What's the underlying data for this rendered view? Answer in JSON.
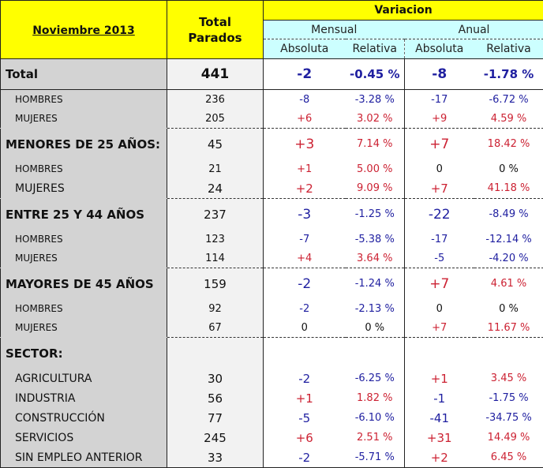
{
  "header": {
    "title": "Noviembre 2013",
    "total_parados": [
      "Total",
      "Parados"
    ],
    "variacion": "Variacion",
    "mensual": "Mensual",
    "anual": "Anual",
    "absoluta": "Absoluta",
    "relativa": "Relativa"
  },
  "colors": {
    "header_bg": "#ffff00",
    "subheader_bg": "#ccffff",
    "label_bg": "#d3d3d3",
    "negative": "#1f1fa0",
    "positive": "#cc2233"
  },
  "rows": [
    {
      "type": "total",
      "label": "Total",
      "total": "441",
      "m_abs": "-2",
      "m_rel": "-0.45 %",
      "a_abs": "-8",
      "a_rel": "-1.78 %"
    },
    {
      "type": "sub",
      "label": "HOMBRES",
      "total": "236",
      "m_abs": "-8",
      "m_rel": "-3.28 %",
      "a_abs": "-17",
      "a_rel": "-6.72 %"
    },
    {
      "type": "sub",
      "label": "MUJERES",
      "total": "205",
      "m_abs": "+6",
      "m_rel": "3.02 %",
      "a_abs": "+9",
      "a_rel": "4.59 %",
      "dash": true
    },
    {
      "type": "group",
      "label": "MENORES DE 25 AÑOS:",
      "total": "45",
      "m_abs": "+3",
      "m_rel": "7.14 %",
      "a_abs": "+7",
      "a_rel": "18.42 %"
    },
    {
      "type": "sub",
      "label": "HOMBRES",
      "total": "21",
      "m_abs": "+1",
      "m_rel": "5.00 %",
      "a_abs": "0",
      "a_rel": "0 %"
    },
    {
      "type": "item",
      "label": "MUJERES",
      "total": "24",
      "m_abs": "+2",
      "m_rel": "9.09 %",
      "a_abs": "+7",
      "a_rel": "41.18 %",
      "dash": true
    },
    {
      "type": "group",
      "label": "ENTRE 25 Y 44 AÑOS",
      "total": "237",
      "m_abs": "-3",
      "m_rel": "-1.25 %",
      "a_abs": "-22",
      "a_rel": "-8.49 %"
    },
    {
      "type": "sub",
      "label": "HOMBRES",
      "total": "123",
      "m_abs": "-7",
      "m_rel": "-5.38 %",
      "a_abs": "-17",
      "a_rel": "-12.14 %"
    },
    {
      "type": "sub",
      "label": "MUJERES",
      "total": "114",
      "m_abs": "+4",
      "m_rel": "3.64 %",
      "a_abs": "-5",
      "a_rel": "-4.20 %",
      "dash": true
    },
    {
      "type": "group",
      "label": "MAYORES DE 45 AÑOS",
      "total": "159",
      "m_abs": "-2",
      "m_rel": "-1.24 %",
      "a_abs": "+7",
      "a_rel": "4.61 %"
    },
    {
      "type": "sub",
      "label": "HOMBRES",
      "total": "92",
      "m_abs": "-2",
      "m_rel": "-2.13 %",
      "a_abs": "0",
      "a_rel": "0 %"
    },
    {
      "type": "sub",
      "label": "MUJERES",
      "total": "67",
      "m_abs": "0",
      "m_rel": "0 %",
      "a_abs": "+7",
      "a_rel": "11.67 %",
      "dash": true
    },
    {
      "type": "group",
      "label": "SECTOR:",
      "total": "",
      "m_abs": "",
      "m_rel": "",
      "a_abs": "",
      "a_rel": ""
    },
    {
      "type": "item",
      "label": "AGRICULTURA",
      "total": "30",
      "m_abs": "-2",
      "m_rel": "-6.25 %",
      "a_abs": "+1",
      "a_rel": "3.45 %"
    },
    {
      "type": "item",
      "label": "INDUSTRIA",
      "total": "56",
      "m_abs": "+1",
      "m_rel": "1.82 %",
      "a_abs": "-1",
      "a_rel": "-1.75 %"
    },
    {
      "type": "item",
      "label": "CONSTRUCCIÓN",
      "total": "77",
      "m_abs": "-5",
      "m_rel": "-6.10 %",
      "a_abs": "-41",
      "a_rel": "-34.75 %"
    },
    {
      "type": "item",
      "label": "SERVICIOS",
      "total": "245",
      "m_abs": "+6",
      "m_rel": "2.51 %",
      "a_abs": "+31",
      "a_rel": "14.49 %"
    },
    {
      "type": "item",
      "label": "SIN EMPLEO ANTERIOR",
      "total": "33",
      "m_abs": "-2",
      "m_rel": "-5.71 %",
      "a_abs": "+2",
      "a_rel": "6.45 %",
      "last": true
    }
  ]
}
